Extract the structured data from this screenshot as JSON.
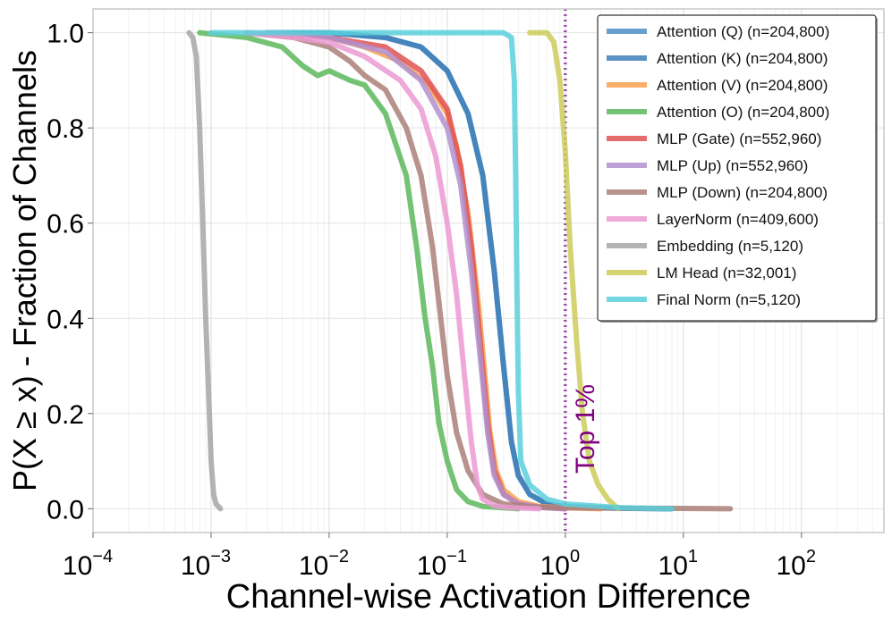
{
  "chart_data": {
    "type": "line",
    "title": "",
    "xlabel": "Channel-wise Activation Difference",
    "ylabel": "P(X ≥ x) - Fraction of Channels",
    "xscale": "log",
    "xlim": [
      0.0001,
      500
    ],
    "ylim": [
      -0.05,
      1.05
    ],
    "grid": true,
    "legend_position": "top-right",
    "x_ticks": [
      {
        "base": "10",
        "exp": "−4",
        "value": 0.0001
      },
      {
        "base": "10",
        "exp": "−3",
        "value": 0.001
      },
      {
        "base": "10",
        "exp": "−2",
        "value": 0.01
      },
      {
        "base": "10",
        "exp": "−1",
        "value": 0.1
      },
      {
        "base": "10",
        "exp": "0",
        "value": 1
      },
      {
        "base": "10",
        "exp": "1",
        "value": 10
      },
      {
        "base": "10",
        "exp": "2",
        "value": 100
      }
    ],
    "y_ticks": [
      {
        "label": "0.0",
        "value": 0.0
      },
      {
        "label": "0.2",
        "value": 0.2
      },
      {
        "label": "0.4",
        "value": 0.4
      },
      {
        "label": "0.6",
        "value": 0.6
      },
      {
        "label": "0.8",
        "value": 0.8
      },
      {
        "label": "1.0",
        "value": 1.0
      }
    ],
    "reference_line": {
      "x": 1.0,
      "label": "Top 1%",
      "color": "#9b4fa8",
      "style": "dotted"
    },
    "series": [
      {
        "name": "Attention (Q) (n=204,800)",
        "color": "#4c8fc6",
        "x": [
          0.003,
          0.01,
          0.03,
          0.06,
          0.1,
          0.15,
          0.2,
          0.25,
          0.3,
          0.35,
          0.4,
          0.5,
          0.7,
          1.0,
          3.0,
          8.0
        ],
        "y": [
          1.0,
          1.0,
          0.99,
          0.97,
          0.92,
          0.83,
          0.7,
          0.5,
          0.3,
          0.14,
          0.07,
          0.03,
          0.01,
          0.004,
          0.001,
          0.0
        ]
      },
      {
        "name": "Attention (K) (n=204,800)",
        "color": "#3f7fb8",
        "x": [
          0.003,
          0.01,
          0.03,
          0.06,
          0.1,
          0.15,
          0.2,
          0.25,
          0.3,
          0.35,
          0.4,
          0.5,
          0.7,
          1.0,
          3.0,
          8.0
        ],
        "y": [
          1.0,
          1.0,
          0.99,
          0.97,
          0.92,
          0.83,
          0.7,
          0.5,
          0.3,
          0.14,
          0.07,
          0.03,
          0.01,
          0.004,
          0.001,
          0.0
        ]
      },
      {
        "name": "Attention (V) (n=204,800)",
        "color": "#f9a04e",
        "x": [
          0.003,
          0.01,
          0.02,
          0.04,
          0.07,
          0.1,
          0.12,
          0.15,
          0.18,
          0.2,
          0.23,
          0.26,
          0.3,
          0.4,
          0.6,
          1.0,
          2.0
        ],
        "y": [
          1.0,
          0.99,
          0.97,
          0.94,
          0.89,
          0.83,
          0.76,
          0.62,
          0.45,
          0.33,
          0.16,
          0.08,
          0.04,
          0.015,
          0.005,
          0.002,
          0.0
        ]
      },
      {
        "name": "Attention (O) (n=204,800)",
        "color": "#5cb85c",
        "x": [
          0.0008,
          0.002,
          0.004,
          0.006,
          0.008,
          0.01,
          0.015,
          0.02,
          0.03,
          0.045,
          0.055,
          0.065,
          0.075,
          0.085,
          0.1,
          0.12,
          0.15,
          0.2,
          0.4
        ],
        "y": [
          1.0,
          0.99,
          0.97,
          0.93,
          0.91,
          0.92,
          0.9,
          0.89,
          0.83,
          0.7,
          0.55,
          0.4,
          0.3,
          0.18,
          0.1,
          0.04,
          0.015,
          0.005,
          0.0
        ]
      },
      {
        "name": "MLP (Gate) (n=552,960)",
        "color": "#e05252",
        "x": [
          0.003,
          0.01,
          0.03,
          0.06,
          0.1,
          0.13,
          0.16,
          0.19,
          0.22,
          0.25,
          0.3,
          0.4,
          0.6,
          1.0
        ],
        "y": [
          1.0,
          0.99,
          0.97,
          0.92,
          0.84,
          0.72,
          0.55,
          0.35,
          0.18,
          0.08,
          0.03,
          0.01,
          0.003,
          0.0
        ]
      },
      {
        "name": "MLP (Up) (n=552,960)",
        "color": "#b291d0",
        "x": [
          0.003,
          0.01,
          0.03,
          0.06,
          0.1,
          0.13,
          0.16,
          0.19,
          0.22,
          0.25,
          0.3,
          0.4,
          0.6,
          1.0
        ],
        "y": [
          1.0,
          0.99,
          0.96,
          0.9,
          0.8,
          0.68,
          0.5,
          0.32,
          0.16,
          0.07,
          0.03,
          0.01,
          0.003,
          0.0
        ]
      },
      {
        "name": "MLP (Down) (n=204,800)",
        "color": "#ac7f79",
        "x": [
          0.002,
          0.005,
          0.01,
          0.015,
          0.02,
          0.03,
          0.045,
          0.06,
          0.075,
          0.09,
          0.1,
          0.12,
          0.15,
          0.2,
          0.3,
          0.5,
          1.0,
          5.0,
          25.0
        ],
        "y": [
          1.0,
          0.99,
          0.97,
          0.94,
          0.91,
          0.88,
          0.8,
          0.7,
          0.55,
          0.38,
          0.28,
          0.16,
          0.08,
          0.03,
          0.01,
          0.004,
          0.002,
          0.001,
          0.0
        ]
      },
      {
        "name": "LayerNorm (n=409,600)",
        "color": "#ec9ad2",
        "x": [
          0.002,
          0.005,
          0.01,
          0.02,
          0.04,
          0.06,
          0.08,
          0.1,
          0.12,
          0.14,
          0.16,
          0.18,
          0.2,
          0.25,
          0.35,
          0.6
        ],
        "y": [
          1.0,
          0.99,
          0.98,
          0.95,
          0.9,
          0.84,
          0.74,
          0.6,
          0.45,
          0.28,
          0.14,
          0.05,
          0.02,
          0.006,
          0.002,
          0.0
        ]
      },
      {
        "name": "Embedding (n=5,120)",
        "color": "#a6a6a6",
        "x": [
          0.00065,
          0.0007,
          0.00075,
          0.0008,
          0.00085,
          0.0009,
          0.00095,
          0.001,
          0.00105,
          0.0011,
          0.0012
        ],
        "y": [
          1.0,
          0.99,
          0.95,
          0.8,
          0.6,
          0.4,
          0.25,
          0.1,
          0.03,
          0.01,
          0.0
        ]
      },
      {
        "name": "LM Head (n=32,001)",
        "color": "#cccc5c",
        "x": [
          0.5,
          0.7,
          0.8,
          0.9,
          1.0,
          1.1,
          1.25,
          1.4,
          1.6,
          1.9,
          2.3,
          2.8
        ],
        "y": [
          1.0,
          1.0,
          0.98,
          0.9,
          0.75,
          0.55,
          0.35,
          0.2,
          0.1,
          0.05,
          0.02,
          0.0
        ]
      },
      {
        "name": "Final Norm (n=5,120)",
        "color": "#5ad0dc",
        "x": [
          0.001,
          0.01,
          0.1,
          0.3,
          0.35,
          0.37,
          0.38,
          0.39,
          0.4,
          0.42,
          0.5,
          0.7,
          1.0,
          3.0,
          8.0
        ],
        "y": [
          1.0,
          1.0,
          1.0,
          1.0,
          0.99,
          0.9,
          0.7,
          0.45,
          0.25,
          0.1,
          0.05,
          0.02,
          0.01,
          0.002,
          0.0
        ]
      }
    ]
  }
}
